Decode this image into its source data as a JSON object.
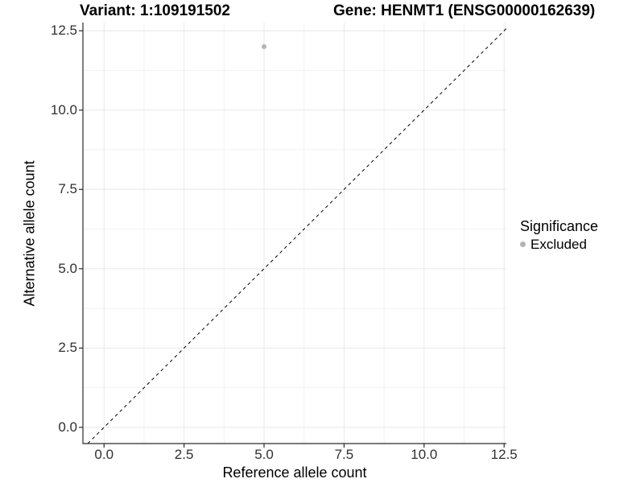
{
  "chart_data": {
    "type": "scatter",
    "title_left": "Variant: 1:109191502",
    "title_right": "Gene: HENMT1 (ENSG00000162639)",
    "xlabel": "Reference allele count",
    "ylabel": "Alternative allele count",
    "x_ticks": {
      "values": [
        0,
        2.5,
        5,
        7.5,
        10,
        12.5
      ],
      "labels": [
        "0.0",
        "2.5",
        "5.0",
        "7.5",
        "10.0",
        "12.5"
      ]
    },
    "y_ticks": {
      "values": [
        0,
        2.5,
        5,
        7.5,
        10,
        12.5
      ],
      "labels": [
        "0.0",
        "2.5",
        "5.0",
        "7.5",
        "10.0",
        "12.5"
      ]
    },
    "minor_tick_values": [
      1.25,
      3.75,
      6.25,
      8.75,
      11.25
    ],
    "xlim": [
      -0.66,
      12.57
    ],
    "ylim": [
      -0.51,
      12.76
    ],
    "grid": {
      "major": true,
      "minor": true
    },
    "series": [
      {
        "name": "Excluded",
        "color": "#b4b4b4",
        "point_radius": 3,
        "points": [
          [
            5,
            12
          ]
        ]
      }
    ],
    "reference_line": {
      "slope": 1,
      "intercept": 0,
      "style": "dashed",
      "color": "#000000",
      "width": 1
    },
    "legend": {
      "title": "Significance",
      "position": "right",
      "items": [
        {
          "label": "Excluded",
          "color": "#b4b4b4"
        }
      ]
    },
    "style": {
      "grid_major_color": "#e8e8e8",
      "grid_minor_color": "#f2f2f2",
      "axis_line_color": "#2b2b2b",
      "tick_mark_color": "#2b2b2b",
      "tick_label_color": "#303030",
      "background": "#ffffff"
    }
  }
}
